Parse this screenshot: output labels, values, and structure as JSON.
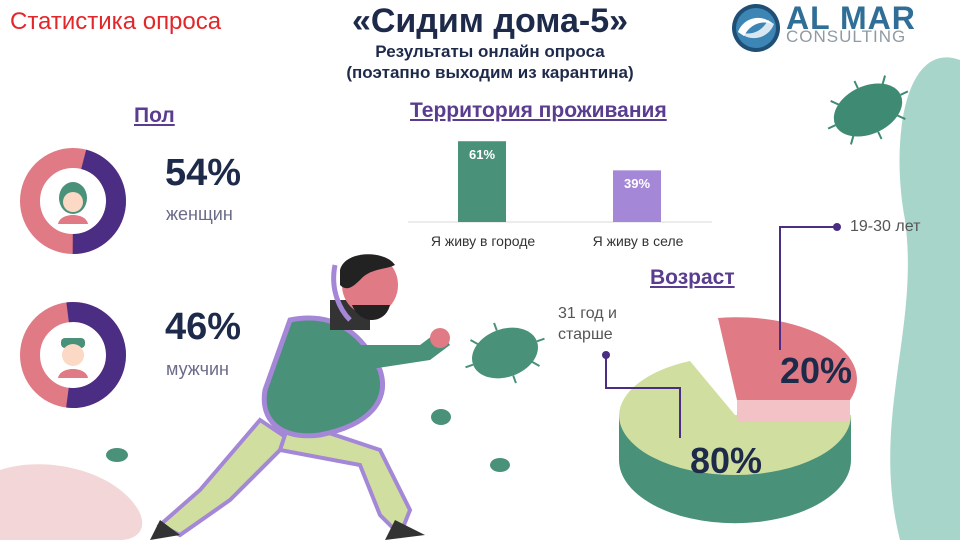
{
  "header": {
    "section_label": "Статистика опроса",
    "title": "«Сидим дома-5»",
    "subtitle_line1": "Результаты онлайн опроса",
    "subtitle_line2": "(поэтапно выходим из карантина)"
  },
  "logo": {
    "line1": "AL MAR",
    "line2": "CONSULTING"
  },
  "colors": {
    "dark_navy": "#1e2a4a",
    "heading_purple": "#5a3d8f",
    "pink": "#e07a85",
    "purple": "#4b2e83",
    "green": "#4a917a",
    "light_purple": "#a487d6",
    "light_green": "#d0dfa0",
    "mint": "#a7d5ca"
  },
  "chart_data": [
    {
      "type": "pie",
      "title": "Пол",
      "categories": [
        "женщин",
        "мужчин"
      ],
      "values": [
        54,
        46
      ],
      "value_labels": [
        "54%",
        "46%"
      ]
    },
    {
      "type": "bar",
      "title": "Территория проживания",
      "categories": [
        "Я живу в городе",
        "Я живу в селе"
      ],
      "values": [
        61,
        39
      ],
      "value_labels": [
        "61%",
        "39%"
      ],
      "ylim": [
        0,
        70
      ],
      "grid": false
    },
    {
      "type": "pie",
      "title": "Возраст",
      "categories": [
        "19-30 лет",
        "31 год и старше"
      ],
      "values": [
        20,
        80
      ],
      "value_labels": [
        "20%",
        "80%"
      ]
    }
  ],
  "gender": {
    "heading": "Пол",
    "women": {
      "pct": "54%",
      "label": "женщин"
    },
    "men": {
      "pct": "46%",
      "label": "мужчин"
    }
  },
  "territory": {
    "heading": "Территория проживания"
  },
  "age": {
    "heading": "Возраст",
    "note_young": "19-30 лет",
    "note_old_line1": "31 год и",
    "note_old_line2": "старше"
  }
}
